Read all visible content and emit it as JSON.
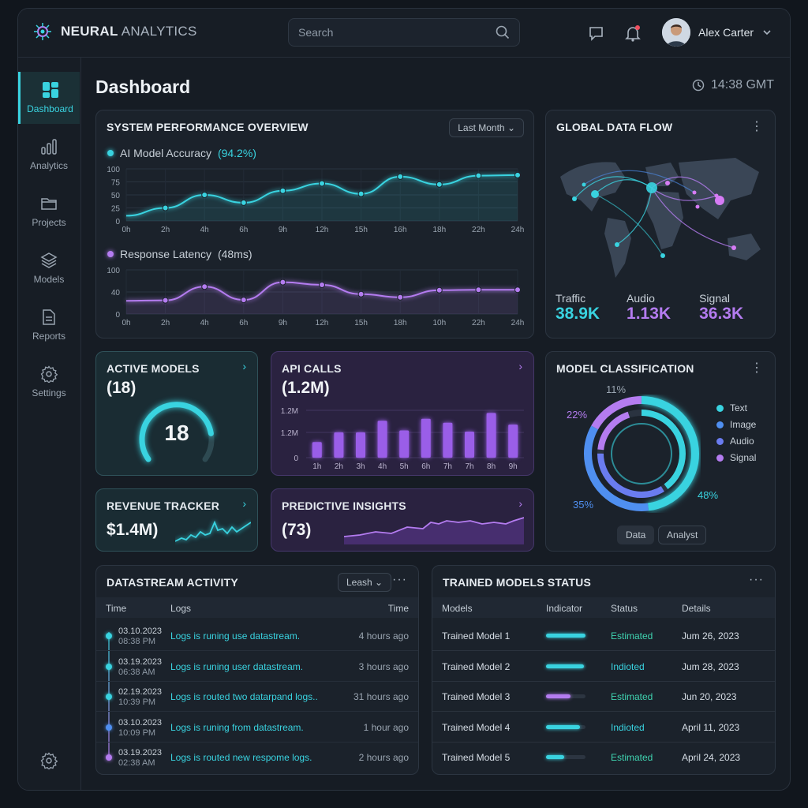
{
  "header": {
    "brand_a": "NEURAL",
    "brand_b": "ANALYTICS",
    "search_placeholder": "Search",
    "user_name": "Alex Carter"
  },
  "sidebar": {
    "items": [
      {
        "label": "Dashboard",
        "icon": "dashboard-icon"
      },
      {
        "label": "Analytics",
        "icon": "bar-chart-icon"
      },
      {
        "label": "Projects",
        "icon": "folder-icon"
      },
      {
        "label": "Models",
        "icon": "layers-icon"
      },
      {
        "label": "Reports",
        "icon": "document-icon"
      },
      {
        "label": "Settings",
        "icon": "gear-icon"
      }
    ]
  },
  "page": {
    "title": "Dashboard",
    "time": "14:38 GMT"
  },
  "performance": {
    "title": "SYSTEM PERFORMANCE OVERVIEW",
    "range": "Last Month",
    "accuracy_label": "AI Model Accuracy",
    "accuracy_value": "(94.2%)",
    "latency_label": "Response Latency",
    "latency_value": "(48ms)"
  },
  "dataflow": {
    "title": "GLOBAL DATA FLOW",
    "stats": [
      {
        "label": "Traffic",
        "value": "38.9K",
        "color": "#39d3e0"
      },
      {
        "label": "Audio",
        "value": "1.13K",
        "color": "#b47cf0"
      },
      {
        "label": "Signal",
        "value": "36.3K",
        "color": "#b47cf0"
      }
    ]
  },
  "active_models": {
    "title": "ACTIVE MODELS",
    "value": "(18)",
    "gauge": "18",
    "gauge_fraction": 0.82
  },
  "api_calls": {
    "title": "API CALLS",
    "value": "(1.2M)"
  },
  "revenue": {
    "title": "REVENUE TRACKER",
    "value": "$1.4M)"
  },
  "insights": {
    "title": "PREDICTIVE INSIGHTS",
    "value": "(73)"
  },
  "classification": {
    "title": "MODEL CLASSIFICATION",
    "pct_top": "11%",
    "pct_left": "22%",
    "pct_bottom": "35%",
    "pct_right": "48%",
    "legend": [
      {
        "label": "Text",
        "color": "#39d3e0"
      },
      {
        "label": "Image",
        "color": "#4f8ff0"
      },
      {
        "label": "Audio",
        "color": "#6a7cf0"
      },
      {
        "label": "Signal",
        "color": "#b47cf0"
      }
    ],
    "btn_data": "Data",
    "btn_analyst": "Analyst"
  },
  "datastream": {
    "title": "DATASTREAM ACTIVITY",
    "filter": "Leash",
    "columns": [
      "Time",
      "Logs",
      "Time"
    ],
    "rows": [
      {
        "date": "03.10.2023",
        "time": "08:38 PM",
        "log": "Logs is runing use datastream.",
        "ago": "4 hours ago",
        "dot": "#39d3e0"
      },
      {
        "date": "03.19.2023",
        "time": "06:38 AM",
        "log": "Logs is runing user datastream.",
        "ago": "3 hours ago",
        "dot": "#39d3e0"
      },
      {
        "date": "02.19.2023",
        "time": "10:39 PM",
        "log": "Logs is routed two datarpand logs..",
        "ago": "31 hours ago",
        "dot": "#39d3e0"
      },
      {
        "date": "03.10.2023",
        "time": "10:09 PM",
        "log": "Logs is runing from datastream.",
        "ago": "1 hour ago",
        "dot": "#4f8ff0"
      },
      {
        "date": "03.19.2023",
        "time": "02:38 AM",
        "log": "Logs is routed new respome logs.",
        "ago": "2 hours ago",
        "dot": "#b47cf0"
      }
    ]
  },
  "trained": {
    "title": "TRAINED MODELS STATUS",
    "columns": [
      "Models",
      "Indicator",
      "Status",
      "Details"
    ],
    "rows": [
      {
        "name": "Trained Model 1",
        "level": 1.0,
        "color": "#39d3e0",
        "status": "Estimated",
        "details": "Jum 26, 2023"
      },
      {
        "name": "Trained Model 2",
        "level": 0.96,
        "color": "#39d3e0",
        "status": "Indioted",
        "details": "Jum 28, 2023"
      },
      {
        "name": "Trained Model 3",
        "level": 0.62,
        "color": "#b47cf0",
        "status": "Estimated",
        "details": "Jun 20, 2023"
      },
      {
        "name": "Trained Model 4",
        "level": 0.86,
        "color": "#39d3e0",
        "status": "Indioted",
        "details": "April 11, 2023"
      },
      {
        "name": "Trained Model 5",
        "level": 0.46,
        "color": "#39d3e0",
        "status": "Estimated",
        "details": "April 24, 2023"
      }
    ]
  },
  "chart_data": [
    {
      "type": "line",
      "title": "AI Model Accuracy (94.2%)",
      "x": [
        "0h",
        "2h",
        "4h",
        "6h",
        "9h",
        "12h",
        "15h",
        "16h",
        "18h",
        "22h",
        "24h"
      ],
      "values": [
        10,
        25,
        50,
        35,
        58,
        72,
        52,
        85,
        70,
        87,
        88
      ],
      "ylim": [
        0,
        100
      ],
      "yticks": [
        "100",
        "75",
        "50",
        "25",
        "0"
      ],
      "color": "#39d3e0"
    },
    {
      "type": "line",
      "title": "Response Latency (48ms)",
      "x": [
        "0h",
        "2h",
        "4h",
        "6h",
        "9h",
        "12h",
        "15h",
        "18h",
        "10h",
        "22h",
        "24h"
      ],
      "values": [
        30,
        31,
        62,
        32,
        72,
        66,
        45,
        38,
        54,
        55,
        55
      ],
      "ylim": [
        0,
        100
      ],
      "yticks": [
        "100",
        "40",
        "0"
      ],
      "color": "#b47cf0"
    },
    {
      "type": "bar",
      "title": "API CALLS",
      "categories": [
        "1h",
        "2h",
        "3h",
        "4h",
        "5h",
        "6h",
        "7h",
        "7h",
        "8h",
        "9h"
      ],
      "values": [
        0.4,
        0.65,
        0.65,
        0.95,
        0.7,
        1.0,
        0.9,
        0.67,
        1.15,
        0.85
      ],
      "yticks": [
        "1.2M",
        "1.2M",
        "0"
      ],
      "color": "#9a5ee8"
    }
  ]
}
